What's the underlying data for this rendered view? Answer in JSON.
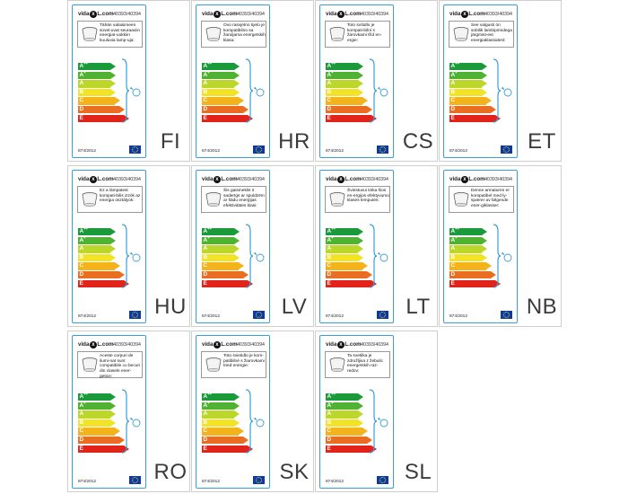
{
  "brand": {
    "prefix": "vida",
    "mark": "x",
    "suffix": "L.com"
  },
  "product_code": "40393/40394",
  "regulation": "874/2012",
  "energy_classes": [
    {
      "letter": "A",
      "plus": "++",
      "color": "#1a9a3a"
    },
    {
      "letter": "A",
      "plus": "+",
      "color": "#4fb233"
    },
    {
      "letter": "A",
      "plus": "",
      "color": "#bdd62a"
    },
    {
      "letter": "B",
      "plus": "",
      "color": "#f2e324"
    },
    {
      "letter": "C",
      "plus": "",
      "color": "#f4b21b"
    },
    {
      "letter": "D",
      "plus": "",
      "color": "#ea6e22"
    },
    {
      "letter": "E",
      "plus": "",
      "color": "#e2231a"
    }
  ],
  "labels": [
    {
      "lang": "FI",
      "text": "Tähän valaisimeen sovel-uvat seuraaviin energiaI-uokkiin kuuluvia lamp-uja:"
    },
    {
      "lang": "HR",
      "text": "Ovo rasvjetno tijelo je kompatibilno sa žaruljama energetskih klasa:"
    },
    {
      "lang": "CS",
      "text": "Toto svítidlo je kompati-bilní s žárovkami tříd en-ergie:"
    },
    {
      "lang": "ET",
      "text": "See valgusti on sobilik lambipirnidega järgmist-est energiaklassidest:"
    },
    {
      "lang": "HU",
      "text": "Ez a lámpatest kompati-bilis izzók az energia osztályok:"
    },
    {
      "lang": "LV",
      "text": "Šis gaismeklis ir saderīgs ar spuldzēm ar šādu enerģijas efektivitātes klasi:"
    },
    {
      "lang": "LT",
      "text": "Šviestuvui tinka šios en-ergijos efektyvumo klasės lemputės:"
    },
    {
      "lang": "NB",
      "text": "Denne armaturen er kompatibel med ly-spærer av følgende ener-giklasser:"
    },
    {
      "lang": "RO",
      "text": "Aceste corpuri de ilumi-nat sunt compatibile cu becuri din clasele ener-getice:"
    },
    {
      "lang": "SK",
      "text": "Toto svietidlo je kom-patibilné s žiarovkami tried energie:"
    },
    {
      "lang": "SL",
      "text": "Ta svetilka je združljiva z žebulic energetskih raz-redov:"
    }
  ]
}
